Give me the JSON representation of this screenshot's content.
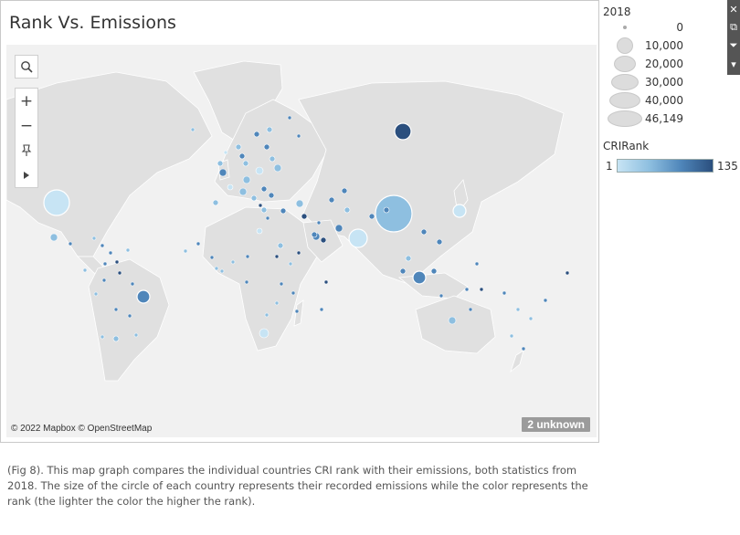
{
  "title": "Rank Vs. Emissions",
  "map": {
    "attribution": "© 2022 Mapbox © OpenStreetMap",
    "unknown_badge": "2 unknown",
    "search_icon": "search-icon",
    "zoom_in_label": "+",
    "zoom_out_label": "−",
    "pin_icon": "pin-icon",
    "expand_icon": "play-icon"
  },
  "size_legend": {
    "title": "2018",
    "labels": [
      "0",
      "10,000",
      "20,000",
      "30,000",
      "40,000",
      "46,149"
    ]
  },
  "color_legend": {
    "title": "CRIRank",
    "min": "1",
    "max": "135",
    "colors": [
      "#c7e4f4",
      "#8ebfe0",
      "#4f86ba",
      "#2b4f7e"
    ]
  },
  "caption": "(Fig 8). This map graph compares the individual countries CRI rank with their emissions, both statistics from 2018.  The size of the circle of each country represents their recorded emissions while the color represents the rank (the lighter the color the higher the rank).",
  "toolbar": {
    "icons": [
      "close-icon",
      "share-icon",
      "filter-icon",
      "dropdown-icon"
    ]
  }
}
